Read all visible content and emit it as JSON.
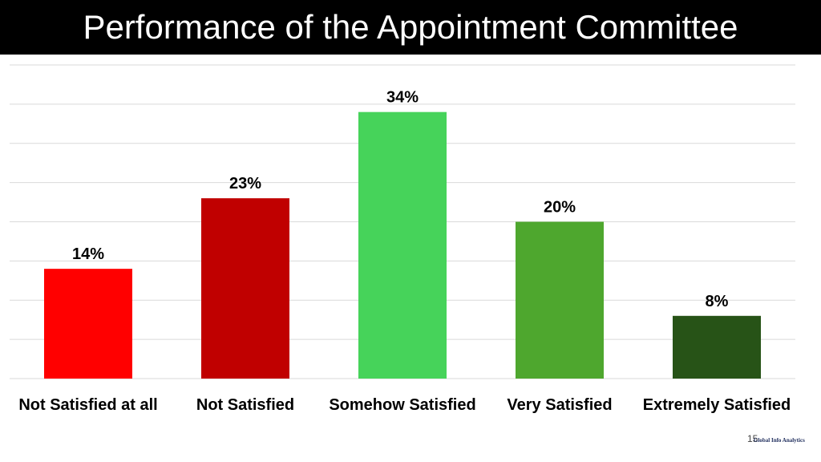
{
  "chart_data": {
    "type": "bar",
    "title": "Performance of the Appointment Committee",
    "categories": [
      "Not Satisfied at all",
      "Not Satisfied",
      "Somehow Satisfied",
      "Very Satisfied",
      "Extremely Satisfied"
    ],
    "values": [
      14,
      23,
      34,
      20,
      8
    ],
    "value_labels": [
      "14%",
      "23%",
      "34%",
      "20%",
      "8%"
    ],
    "colors": [
      "#ff0000",
      "#c00000",
      "#46d35a",
      "#4ea72e",
      "#275317"
    ],
    "ylim": [
      0,
      40
    ],
    "yticks": [
      0,
      5,
      10,
      15,
      20,
      25,
      30,
      35,
      40
    ],
    "grid": true
  },
  "footer": {
    "page": "15",
    "logo": "Global Info Analytics"
  }
}
